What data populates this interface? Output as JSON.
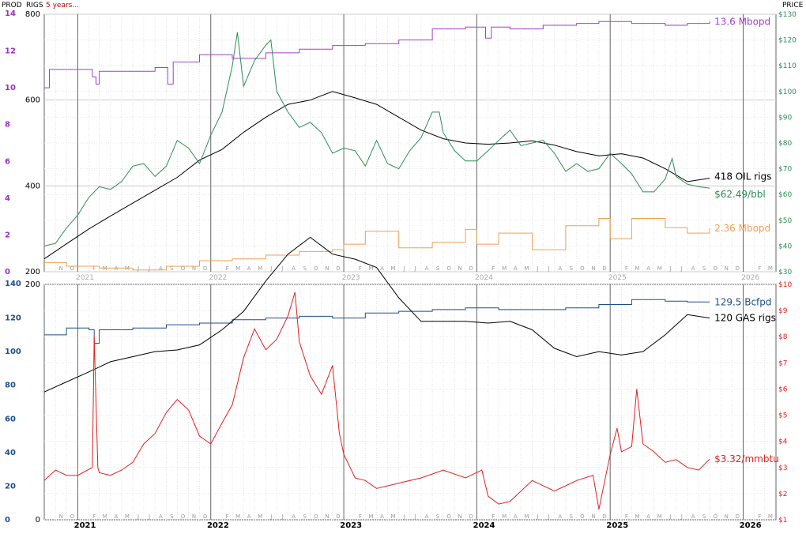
{
  "header": {
    "prod_label": "PROD",
    "rigs_label": "RIGS",
    "period_label": "5 years...",
    "price_label": "PRICE"
  },
  "colors": {
    "prod_axis": "#9b30c0",
    "oil_prod": "#a040c8",
    "oil_rigs": "#000000",
    "oil_price": "#2e8b57",
    "other_prod": "#f0a050",
    "gas_prod": "#1f4e8c",
    "gas_rigs": "#000000",
    "gas_price": "#e02020",
    "gas_axis_left": "#1f4e8c",
    "gas_axis_right": "#e02020"
  },
  "chart_data": [
    {
      "type": "line",
      "panel": "oil",
      "x_range": [
        "2020-10-01",
        "2026-04-01"
      ],
      "year_ticks": [
        "2021",
        "2022",
        "2023",
        "2024",
        "2025",
        "2026"
      ],
      "month_ticks": [
        "J",
        "F",
        "M",
        "A",
        "M",
        "J",
        "J",
        "A",
        "S",
        "O",
        "N",
        "D"
      ],
      "partial_months_start": [
        "N",
        "O"
      ],
      "partial_months_end": [
        "F",
        "M",
        "A"
      ],
      "y_prod": {
        "min": 0,
        "max": 14,
        "ticks": [
          "0",
          "2",
          "4",
          "6",
          "8",
          "10",
          "12",
          "14"
        ]
      },
      "y_rigs": {
        "min": 200,
        "max": 800,
        "ticks": [
          "200",
          "400",
          "600",
          "800"
        ]
      },
      "y_price": {
        "min": 30,
        "max": 130,
        "ticks": [
          "$30",
          "$40",
          "$50",
          "$60",
          "$70",
          "$80",
          "$90",
          "$100",
          "$110",
          "$120",
          "$130"
        ]
      },
      "grid": true,
      "series": [
        {
          "name": "oil_production",
          "axis": "prod",
          "label": "13.6 Mbopd",
          "x": [
            "2020-10-01",
            "2020-10-15",
            "2020-11-15",
            "2021-01-15",
            "2021-02-10",
            "2021-02-20",
            "2021-03-01",
            "2021-05-01",
            "2021-08-01",
            "2021-09-05",
            "2021-09-20",
            "2021-10-01",
            "2021-12-01",
            "2022-03-01",
            "2022-06-01",
            "2022-09-01",
            "2022-12-01",
            "2023-03-01",
            "2023-06-01",
            "2023-09-01",
            "2023-12-01",
            "2024-01-10",
            "2024-01-25",
            "2024-02-10",
            "2024-04-01",
            "2024-07-01",
            "2024-10-01",
            "2024-12-01",
            "2025-03-01",
            "2025-06-01",
            "2025-08-01",
            "2025-10-01"
          ],
          "y": [
            10.0,
            11.0,
            11.0,
            11.0,
            10.6,
            10.2,
            10.9,
            10.9,
            11.1,
            10.2,
            11.4,
            11.4,
            11.8,
            11.6,
            11.9,
            12.1,
            12.3,
            12.4,
            12.6,
            13.2,
            13.3,
            13.3,
            12.7,
            13.3,
            13.2,
            13.4,
            13.5,
            13.6,
            13.5,
            13.4,
            13.5,
            13.6
          ]
        },
        {
          "name": "oil_rigs",
          "axis": "rigs",
          "label": "418 OIL rigs",
          "x": [
            "2020-10-01",
            "2020-12-01",
            "2021-02-01",
            "2021-04-01",
            "2021-06-01",
            "2021-08-01",
            "2021-10-01",
            "2021-12-01",
            "2022-02-01",
            "2022-04-01",
            "2022-06-01",
            "2022-08-01",
            "2022-10-01",
            "2022-12-01",
            "2023-02-01",
            "2023-04-01",
            "2023-06-01",
            "2023-08-01",
            "2023-10-01",
            "2023-12-01",
            "2024-02-01",
            "2024-04-01",
            "2024-06-01",
            "2024-08-01",
            "2024-10-01",
            "2024-12-01",
            "2025-02-01",
            "2025-04-01",
            "2025-06-01",
            "2025-08-01",
            "2025-10-01"
          ],
          "y": [
            230,
            265,
            300,
            330,
            360,
            390,
            420,
            460,
            485,
            525,
            560,
            590,
            600,
            620,
            605,
            590,
            560,
            530,
            510,
            500,
            497,
            500,
            505,
            495,
            480,
            470,
            475,
            465,
            440,
            410,
            418
          ]
        },
        {
          "name": "oil_price",
          "axis": "price",
          "label": "$62.49/bbl",
          "x": [
            "2020-10-01",
            "2020-11-01",
            "2020-12-01",
            "2021-01-01",
            "2021-02-01",
            "2021-03-01",
            "2021-04-01",
            "2021-05-01",
            "2021-06-01",
            "2021-07-01",
            "2021-08-01",
            "2021-09-01",
            "2021-10-01",
            "2021-11-01",
            "2021-12-01",
            "2022-01-01",
            "2022-02-01",
            "2022-03-01",
            "2022-03-15",
            "2022-04-01",
            "2022-05-01",
            "2022-06-01",
            "2022-06-15",
            "2022-07-01",
            "2022-08-01",
            "2022-09-01",
            "2022-10-01",
            "2022-11-01",
            "2022-12-01",
            "2023-01-01",
            "2023-02-01",
            "2023-03-01",
            "2023-04-01",
            "2023-05-01",
            "2023-06-01",
            "2023-07-01",
            "2023-08-01",
            "2023-09-01",
            "2023-09-20",
            "2023-10-01",
            "2023-11-01",
            "2023-12-01",
            "2024-01-01",
            "2024-02-01",
            "2024-03-01",
            "2024-04-01",
            "2024-05-01",
            "2024-06-01",
            "2024-07-01",
            "2024-08-01",
            "2024-09-01",
            "2024-10-01",
            "2024-11-01",
            "2024-12-01",
            "2025-01-01",
            "2025-02-01",
            "2025-03-01",
            "2025-04-01",
            "2025-05-01",
            "2025-06-01",
            "2025-06-20",
            "2025-07-01",
            "2025-08-01",
            "2025-09-01",
            "2025-10-01"
          ],
          "y": [
            40,
            41,
            47,
            52,
            59,
            63,
            62,
            65,
            71,
            72,
            67,
            71,
            81,
            78,
            72,
            83,
            92,
            110,
            123,
            102,
            112,
            118,
            120,
            100,
            92,
            86,
            88,
            84,
            76,
            78,
            77,
            71,
            81,
            72,
            70,
            77,
            82,
            92,
            92,
            84,
            77,
            73,
            73,
            77,
            81,
            85,
            79,
            80,
            81,
            76,
            69,
            72,
            69,
            70,
            76,
            72,
            68,
            61,
            61,
            66,
            74,
            67,
            64,
            63,
            62.49
          ]
        },
        {
          "name": "other_production",
          "axis": "prod",
          "label": "2.36 Mbopd",
          "x": [
            "2020-10-01",
            "2020-12-01",
            "2021-03-01",
            "2021-06-01",
            "2021-09-01",
            "2021-12-01",
            "2022-03-01",
            "2022-06-01",
            "2022-09-01",
            "2022-12-01",
            "2023-01-01",
            "2023-03-01",
            "2023-06-01",
            "2023-09-01",
            "2023-12-01",
            "2024-01-01",
            "2024-03-01",
            "2024-06-01",
            "2024-09-01",
            "2024-12-01",
            "2025-01-01",
            "2025-03-01",
            "2025-06-01",
            "2025-08-01",
            "2025-10-01"
          ],
          "y": [
            0.5,
            0.3,
            0.2,
            0.1,
            0.3,
            0.6,
            0.7,
            0.9,
            1.1,
            1.2,
            1.5,
            2.2,
            1.3,
            1.6,
            2.3,
            1.5,
            2.1,
            1.2,
            2.5,
            2.9,
            1.8,
            2.9,
            2.4,
            2.1,
            2.36
          ]
        }
      ]
    },
    {
      "type": "line",
      "panel": "gas",
      "x_range": [
        "2020-10-01",
        "2026-04-01"
      ],
      "year_ticks": [
        "2021",
        "2022",
        "2023",
        "2024",
        "2025",
        "2026"
      ],
      "month_ticks": [
        "J",
        "F",
        "M",
        "A",
        "M",
        "J",
        "J",
        "A",
        "S",
        "O",
        "N",
        "D"
      ],
      "partial_months_start": [
        "N",
        "O"
      ],
      "partial_months_end": [
        "F",
        "M",
        "A"
      ],
      "y_prod": {
        "min": 0,
        "max": 140,
        "ticks": [
          "0",
          "20",
          "40",
          "60",
          "80",
          "100",
          "120",
          "140"
        ]
      },
      "y_rigs": {
        "min": 0,
        "max": 200,
        "ticks": [
          "0",
          "200"
        ]
      },
      "y_price": {
        "min": 1,
        "max": 10,
        "ticks": [
          "$1",
          "$2",
          "$3",
          "$4",
          "$5",
          "$6",
          "$7",
          "$8",
          "$9",
          "$10"
        ]
      },
      "grid": true,
      "series": [
        {
          "name": "gas_production",
          "axis": "prod",
          "label": "129.5 Bcfpd",
          "x": [
            "2020-10-01",
            "2020-12-01",
            "2021-02-01",
            "2021-02-15",
            "2021-03-01",
            "2021-06-01",
            "2021-09-01",
            "2021-12-01",
            "2022-03-01",
            "2022-06-01",
            "2022-09-01",
            "2022-12-01",
            "2023-03-01",
            "2023-06-01",
            "2023-09-01",
            "2023-12-01",
            "2024-03-01",
            "2024-06-01",
            "2024-09-01",
            "2024-12-01",
            "2025-03-01",
            "2025-06-01",
            "2025-08-01",
            "2025-10-01"
          ],
          "y": [
            110,
            114,
            113,
            105,
            113,
            114,
            116,
            117,
            119,
            120,
            121,
            120,
            123,
            124,
            125,
            126,
            125,
            125,
            126,
            128,
            131,
            130,
            129.5,
            129.5
          ]
        },
        {
          "name": "gas_rigs",
          "axis": "prod",
          "label": "120 GAS rigs",
          "x": [
            "2020-10-01",
            "2020-12-01",
            "2021-02-01",
            "2021-04-01",
            "2021-06-01",
            "2021-08-01",
            "2021-10-01",
            "2021-12-01",
            "2022-02-01",
            "2022-04-01",
            "2022-06-01",
            "2022-08-01",
            "2022-10-01",
            "2022-12-01",
            "2023-02-01",
            "2023-04-01",
            "2023-06-01",
            "2023-08-01",
            "2023-10-01",
            "2023-12-01",
            "2024-02-01",
            "2024-04-01",
            "2024-06-01",
            "2024-08-01",
            "2024-10-01",
            "2024-12-01",
            "2025-02-01",
            "2025-04-01",
            "2025-06-01",
            "2025-08-01",
            "2025-10-01"
          ],
          "y": [
            76,
            82,
            88,
            94,
            97,
            100,
            101,
            104,
            113,
            124,
            142,
            158,
            168,
            158,
            155,
            150,
            132,
            118,
            118,
            118,
            117,
            118,
            113,
            102,
            97,
            100,
            98,
            100,
            110,
            122,
            120
          ]
        },
        {
          "name": "gas_price",
          "axis": "price",
          "label": "$3.32/mmbtu",
          "x": [
            "2020-10-01",
            "2020-11-01",
            "2020-12-01",
            "2021-01-01",
            "2021-02-10",
            "2021-02-15",
            "2021-02-25",
            "2021-03-01",
            "2021-04-01",
            "2021-05-01",
            "2021-06-01",
            "2021-07-01",
            "2021-08-01",
            "2021-09-01",
            "2021-10-01",
            "2021-11-01",
            "2021-12-01",
            "2022-01-01",
            "2022-02-01",
            "2022-03-01",
            "2022-04-01",
            "2022-05-01",
            "2022-06-01",
            "2022-07-01",
            "2022-08-01",
            "2022-08-20",
            "2022-09-01",
            "2022-10-01",
            "2022-11-01",
            "2022-12-01",
            "2022-12-20",
            "2023-01-01",
            "2023-02-01",
            "2023-03-01",
            "2023-04-01",
            "2023-06-01",
            "2023-08-01",
            "2023-10-01",
            "2023-12-01",
            "2024-01-15",
            "2024-02-01",
            "2024-03-01",
            "2024-04-01",
            "2024-06-01",
            "2024-08-01",
            "2024-09-01",
            "2024-10-01",
            "2024-11-15",
            "2024-12-01",
            "2025-01-01",
            "2025-01-20",
            "2025-02-01",
            "2025-03-01",
            "2025-03-15",
            "2025-04-01",
            "2025-05-01",
            "2025-06-01",
            "2025-07-01",
            "2025-08-01",
            "2025-09-01",
            "2025-10-01"
          ],
          "y": [
            2.5,
            2.9,
            2.7,
            2.7,
            3.0,
            8.0,
            3.0,
            2.8,
            2.7,
            2.9,
            3.2,
            3.9,
            4.3,
            5.1,
            5.6,
            5.2,
            4.2,
            3.9,
            4.7,
            5.4,
            7.2,
            8.3,
            7.5,
            7.9,
            8.8,
            9.7,
            7.8,
            6.5,
            5.8,
            6.9,
            4.3,
            3.5,
            2.6,
            2.5,
            2.2,
            2.4,
            2.6,
            2.9,
            2.6,
            2.9,
            1.9,
            1.6,
            1.7,
            2.5,
            2.1,
            2.3,
            2.5,
            2.7,
            1.4,
            3.5,
            4.5,
            3.6,
            3.8,
            6.0,
            3.9,
            3.6,
            3.2,
            3.3,
            3.0,
            2.9,
            3.32
          ]
        }
      ]
    }
  ]
}
